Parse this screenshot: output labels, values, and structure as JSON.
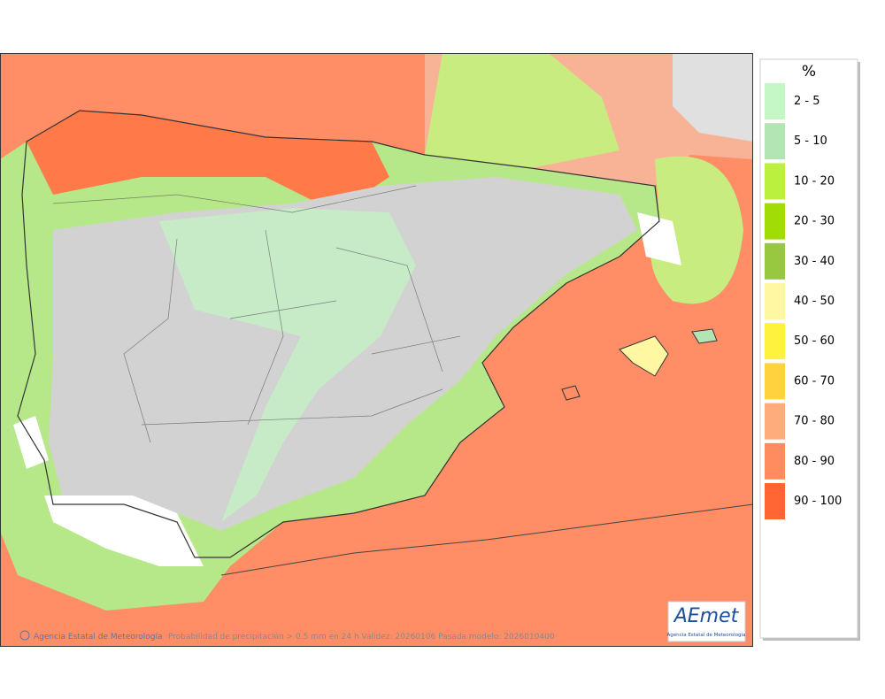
{
  "legend": {
    "title": "%",
    "items": [
      {
        "label": "2 - 5",
        "color": "#c4f6c6"
      },
      {
        "label": "5 - 10",
        "color": "#b2e4b4"
      },
      {
        "label": "10 - 20",
        "color": "#bcf03e"
      },
      {
        "label": "20 - 30",
        "color": "#a2dc06"
      },
      {
        "label": "30 - 40",
        "color": "#98c840"
      },
      {
        "label": "40 - 50",
        "color": "#fff7a2"
      },
      {
        "label": "50 - 60",
        "color": "#fff23e"
      },
      {
        "label": "60 - 70",
        "color": "#ffd23e"
      },
      {
        "label": "70 - 80",
        "color": "#ffac7c"
      },
      {
        "label": "80 - 90",
        "color": "#ff8c5e"
      },
      {
        "label": "90 - 100",
        "color": "#ff6634"
      }
    ]
  },
  "footer": {
    "agency": "Agencia Estatal de Meteorología",
    "caption": "Probabilidad de precipitación > 0.5 mm en 24 h Validez: 20260106 Pasada modelo: 2026010400"
  },
  "logo": {
    "name": "AEmet",
    "subtitle": "Agencia Estatal de Meteorología"
  }
}
